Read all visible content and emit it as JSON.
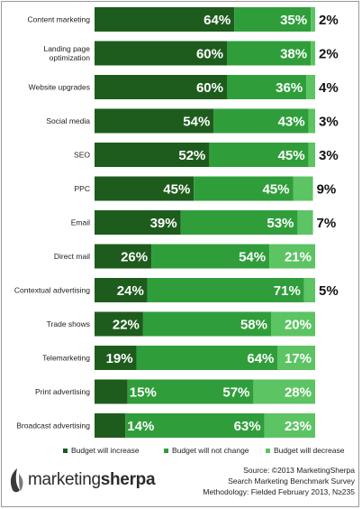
{
  "chart_data": {
    "type": "bar",
    "stacked": "horizontal-100",
    "categories": [
      "Content marketing",
      "Landing page optimization",
      "Website upgrades",
      "Social media",
      "SEO",
      "PPC",
      "Email",
      "Direct mail",
      "Contextual advertising",
      "Trade shows",
      "Telemarketing",
      "Print advertising",
      "Broadcast advertising"
    ],
    "category_lines": [
      [
        "Content marketing"
      ],
      [
        "Landing page",
        "optimization"
      ],
      [
        "Website upgrades"
      ],
      [
        "Social media"
      ],
      [
        "SEO"
      ],
      [
        "PPC"
      ],
      [
        "Email"
      ],
      [
        "Direct mail"
      ],
      [
        "Contextual advertising"
      ],
      [
        "Trade shows"
      ],
      [
        "Telemarketing"
      ],
      [
        "Print advertising"
      ],
      [
        "Broadcast advertising"
      ]
    ],
    "series": [
      {
        "name": "Budget will increase",
        "color": "#1e5c1e",
        "values": [
          64,
          60,
          60,
          54,
          52,
          45,
          39,
          26,
          24,
          22,
          19,
          15,
          14
        ]
      },
      {
        "name": "Budget will not change",
        "color": "#2f9e3a",
        "values": [
          35,
          38,
          36,
          43,
          45,
          45,
          53,
          54,
          71,
          58,
          64,
          57,
          63
        ]
      },
      {
        "name": "Budget will decrease",
        "color": "#5cc463",
        "values": [
          2,
          2,
          4,
          3,
          3,
          9,
          7,
          21,
          5,
          20,
          17,
          28,
          23
        ]
      }
    ],
    "xlim": [
      0,
      100
    ],
    "legend": "bottom"
  },
  "source": {
    "line1": "Source: ©2013 MarketingSherpa",
    "line2": "Search Marketing Benchmark Survey",
    "line3": "Methodology: Fielded February 2013, N≥235"
  },
  "logo": {
    "part1": "marketing",
    "part2": "sherpa"
  }
}
